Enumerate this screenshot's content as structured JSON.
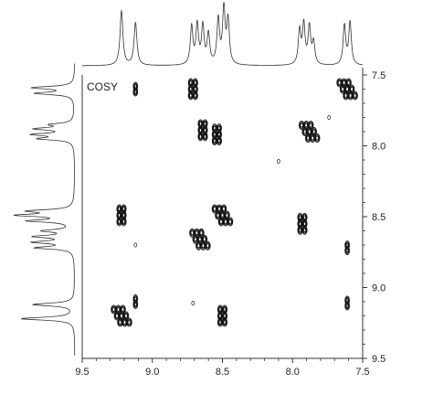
{
  "chart_data": {
    "type": "heatmap",
    "title": "COSY",
    "x_axis": {
      "range": [
        9.5,
        7.5
      ],
      "ticks": [
        "9.5",
        "9.0",
        "8.5",
        "8.0",
        "7.5"
      ],
      "tick_values": [
        9.5,
        9.0,
        8.5,
        8.0,
        7.5
      ]
    },
    "y_axis": {
      "range": [
        7.5,
        9.5
      ],
      "ticks": [
        "7.5",
        "8.0",
        "8.5",
        "9.0",
        "9.5"
      ],
      "tick_values": [
        7.5,
        8.0,
        8.5,
        9.0,
        9.5
      ],
      "position": "right"
    },
    "peaks_1d": [
      {
        "ppm": 9.22,
        "height": 1.0,
        "width": 0.012
      },
      {
        "ppm": 9.12,
        "height": 0.78,
        "width": 0.012
      },
      {
        "ppm": 8.72,
        "height": 0.7,
        "width": 0.011
      },
      {
        "ppm": 8.68,
        "height": 0.72,
        "width": 0.011
      },
      {
        "ppm": 8.64,
        "height": 0.7,
        "width": 0.011
      },
      {
        "ppm": 8.6,
        "height": 0.55,
        "width": 0.011
      },
      {
        "ppm": 8.53,
        "height": 0.82,
        "width": 0.011
      },
      {
        "ppm": 8.49,
        "height": 1.0,
        "width": 0.011
      },
      {
        "ppm": 8.46,
        "height": 0.8,
        "width": 0.011
      },
      {
        "ppm": 7.95,
        "height": 0.62,
        "width": 0.011
      },
      {
        "ppm": 7.92,
        "height": 0.72,
        "width": 0.011
      },
      {
        "ppm": 7.88,
        "height": 0.68,
        "width": 0.011
      },
      {
        "ppm": 7.85,
        "height": 0.4,
        "width": 0.011
      },
      {
        "ppm": 7.63,
        "height": 0.72,
        "width": 0.011
      },
      {
        "ppm": 7.59,
        "height": 0.78,
        "width": 0.011
      }
    ],
    "cross_peaks": [
      {
        "x": 9.12,
        "y": 7.6,
        "size": "small"
      },
      {
        "x": 8.71,
        "y": 7.6,
        "size": "medium"
      },
      {
        "x": 7.61,
        "y": 7.6,
        "size": "diag"
      },
      {
        "x": 8.64,
        "y": 7.89,
        "size": "medium"
      },
      {
        "x": 8.54,
        "y": 7.92,
        "size": "medium"
      },
      {
        "x": 7.88,
        "y": 7.9,
        "size": "diag"
      },
      {
        "x": 9.22,
        "y": 8.49,
        "size": "medium"
      },
      {
        "x": 8.66,
        "y": 8.66,
        "size": "diag"
      },
      {
        "x": 8.5,
        "y": 8.49,
        "size": "diag"
      },
      {
        "x": 7.93,
        "y": 8.55,
        "size": "medium"
      },
      {
        "x": 7.61,
        "y": 8.72,
        "size": "small"
      },
      {
        "x": 9.12,
        "y": 9.1,
        "size": "small"
      },
      {
        "x": 9.22,
        "y": 9.2,
        "size": "diag"
      },
      {
        "x": 8.5,
        "y": 9.2,
        "size": "medium"
      },
      {
        "x": 7.61,
        "y": 9.11,
        "size": "small"
      }
    ],
    "noise_points": [
      {
        "x": 9.12,
        "y": 8.7
      },
      {
        "x": 8.71,
        "y": 9.11
      },
      {
        "x": 7.74,
        "y": 7.8
      },
      {
        "x": 8.1,
        "y": 8.11
      }
    ],
    "grid": false,
    "legend": "none"
  }
}
